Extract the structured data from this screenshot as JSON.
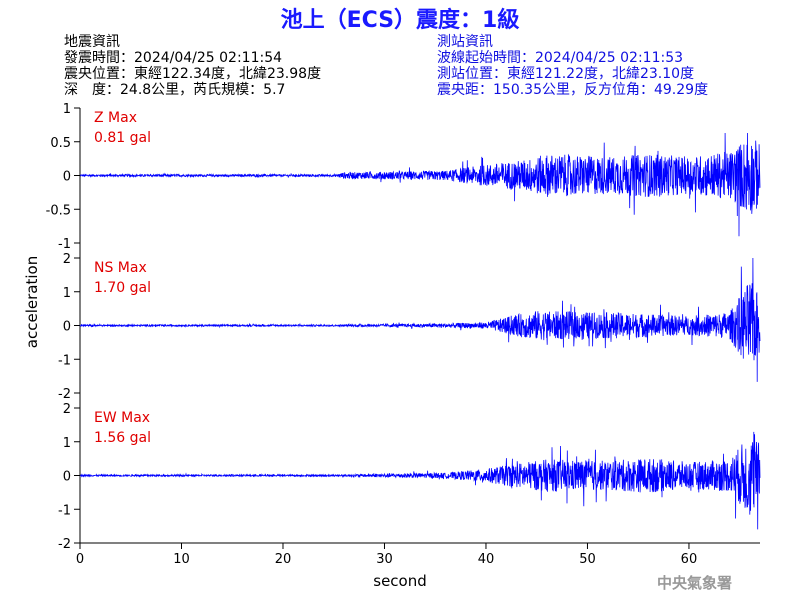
{
  "title": "池上（ECS）震度：1級",
  "earthquake_info": {
    "heading": "地震資訊",
    "time": "發震時間：2024/04/25 02:11:54",
    "epicenter": "震央位置：東經122.34度，北緯23.98度",
    "depth_magnitude": "深　度：24.8公里，芮氏規模：5.7"
  },
  "station_info": {
    "heading": "測站資訊",
    "wave_start": "波線起始時間：2024/04/25 02:11:53",
    "location": "測站位置：東經121.22度，北緯23.10度",
    "distance": "震央距：150.35公里，反方位角：49.29度"
  },
  "credit": "中央氣象署",
  "colors": {
    "title": "#1a1aff",
    "trace": "#0000ff",
    "label": "#e00000",
    "station_text": "#1010e0"
  },
  "chart_data": {
    "type": "line",
    "xlabel": "second",
    "ylabel": "acceleration",
    "xlim": [
      0,
      67
    ],
    "xticks": [
      0,
      10,
      20,
      30,
      40,
      50,
      60
    ],
    "grid": false,
    "panels": [
      {
        "component": "Z",
        "label": "Z Max",
        "max_label": "0.81 gal",
        "peak": 0.81,
        "ylim": [
          -1,
          1
        ],
        "yticks": [
          -1,
          -0.5,
          0,
          0.5,
          1
        ],
        "ytick_labels": [
          "-1",
          "-0.5",
          "0",
          "0.5",
          "1"
        ],
        "envelope": [
          [
            0,
            0.02
          ],
          [
            25,
            0.02
          ],
          [
            26,
            0.06
          ],
          [
            30,
            0.07
          ],
          [
            36,
            0.09
          ],
          [
            40,
            0.2
          ],
          [
            44,
            0.3
          ],
          [
            46,
            0.4
          ],
          [
            52,
            0.35
          ],
          [
            56,
            0.4
          ],
          [
            60,
            0.35
          ],
          [
            64,
            0.45
          ],
          [
            66,
            0.75
          ],
          [
            67,
            0.6
          ]
        ]
      },
      {
        "component": "NS",
        "label": "NS Max",
        "max_label": "1.70 gal",
        "peak": 1.7,
        "ylim": [
          -2,
          2
        ],
        "yticks": [
          -2,
          -1,
          0,
          1,
          2
        ],
        "ytick_labels": [
          "-2",
          "-1",
          "0",
          "1",
          "2"
        ],
        "envelope": [
          [
            0,
            0.03
          ],
          [
            25,
            0.03
          ],
          [
            30,
            0.05
          ],
          [
            36,
            0.08
          ],
          [
            40,
            0.12
          ],
          [
            43,
            0.4
          ],
          [
            45,
            0.55
          ],
          [
            50,
            0.5
          ],
          [
            55,
            0.45
          ],
          [
            60,
            0.35
          ],
          [
            64,
            0.5
          ],
          [
            66,
            1.7
          ],
          [
            67,
            1.1
          ]
        ]
      },
      {
        "component": "EW",
        "label": "EW Max",
        "max_label": "1.56 gal",
        "peak": 1.56,
        "ylim": [
          -2,
          2
        ],
        "yticks": [
          -2,
          -1,
          0,
          1,
          2
        ],
        "ytick_labels": [
          "-2",
          "-1",
          "0",
          "1",
          "2"
        ],
        "envelope": [
          [
            0,
            0.03
          ],
          [
            25,
            0.03
          ],
          [
            30,
            0.07
          ],
          [
            36,
            0.1
          ],
          [
            40,
            0.25
          ],
          [
            43,
            0.45
          ],
          [
            46,
            0.6
          ],
          [
            52,
            0.55
          ],
          [
            56,
            0.65
          ],
          [
            60,
            0.5
          ],
          [
            64,
            0.6
          ],
          [
            66,
            1.56
          ],
          [
            67,
            1.2
          ]
        ]
      }
    ]
  }
}
